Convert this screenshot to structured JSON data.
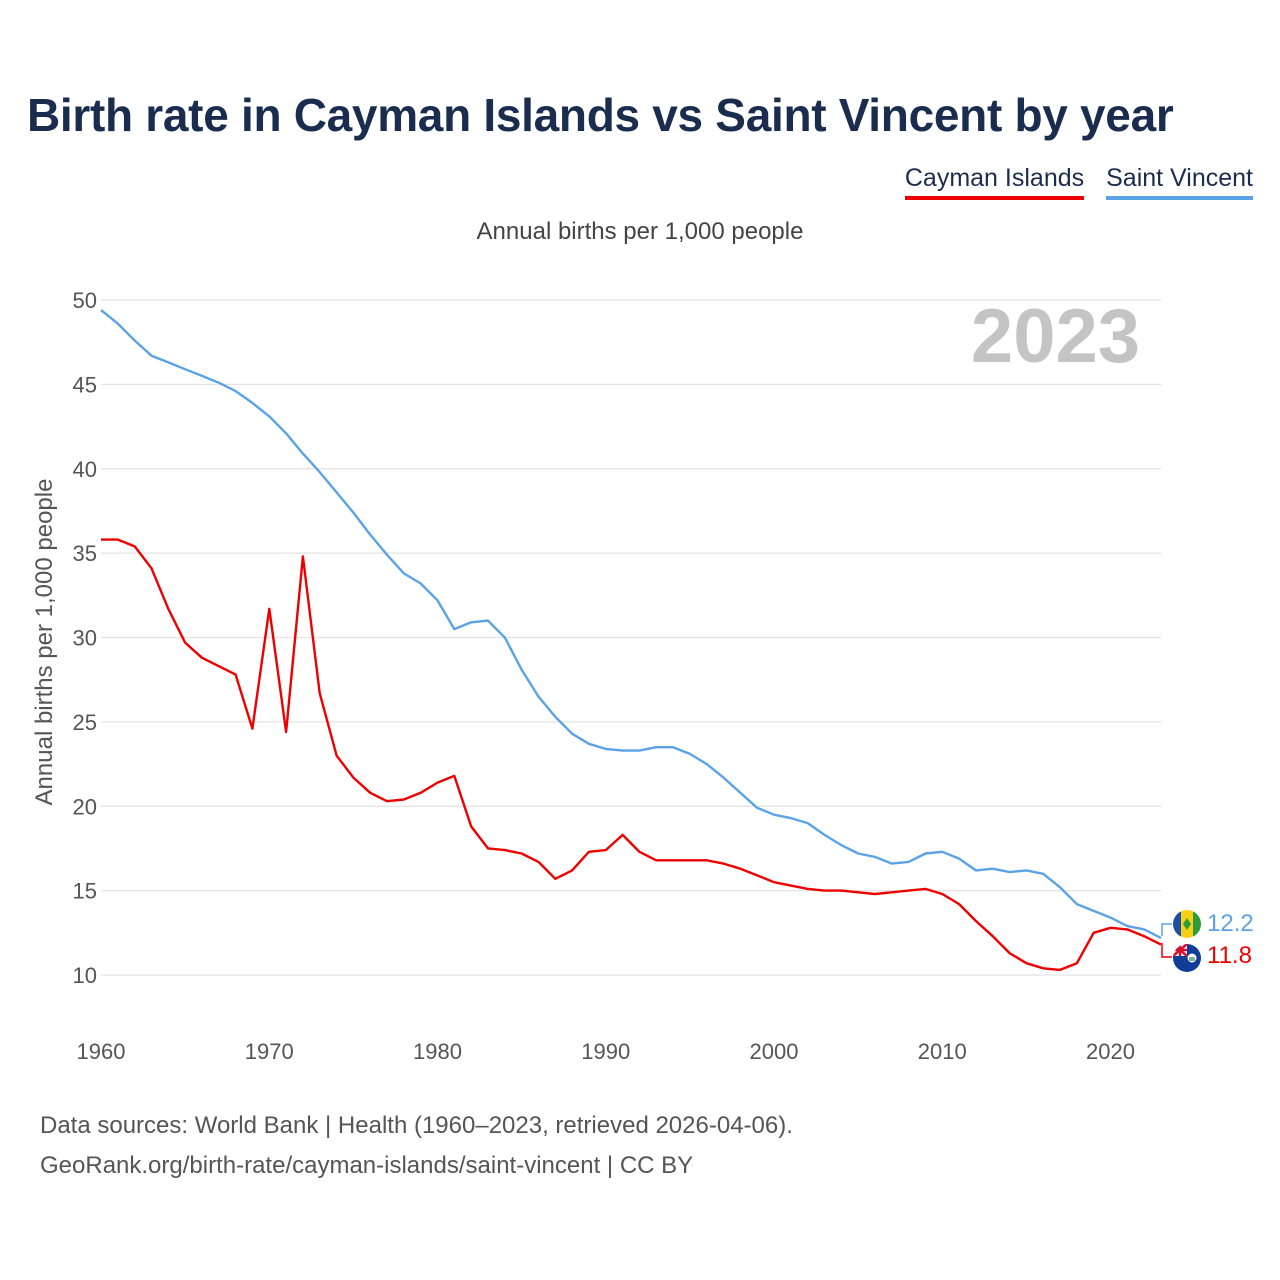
{
  "title": "Birth rate in Cayman Islands vs Saint Vincent by year",
  "legend": [
    {
      "label": "Cayman Islands",
      "color": "#ee0000"
    },
    {
      "label": "Saint Vincent",
      "color": "#5ba3e6"
    }
  ],
  "subtitle": "Annual births per 1,000 people",
  "year_watermark": "2023",
  "footer": {
    "line1": "Data sources: World Bank | Health (1960–2023, retrieved 2026-04-06).",
    "line2": "GeoRank.org/birth-rate/cayman-islands/saint-vincent | CC BY"
  },
  "end_labels": {
    "saint_vincent": "12.2",
    "cayman_islands": "11.8"
  },
  "chart_data": {
    "type": "line",
    "title": "Birth rate in Cayman Islands vs Saint Vincent by year",
    "xlabel": "",
    "ylabel": "Annual births per 1,000 people",
    "xlim": [
      1960,
      2023
    ],
    "ylim": [
      7.5,
      50
    ],
    "x_ticks": [
      1960,
      1970,
      1980,
      1990,
      2000,
      2010,
      2020
    ],
    "y_ticks": [
      10,
      15,
      20,
      25,
      30,
      35,
      40,
      45,
      50
    ],
    "grid": true,
    "x": [
      1960,
      1961,
      1962,
      1963,
      1964,
      1965,
      1966,
      1967,
      1968,
      1969,
      1970,
      1971,
      1972,
      1973,
      1974,
      1975,
      1976,
      1977,
      1978,
      1979,
      1980,
      1981,
      1982,
      1983,
      1984,
      1985,
      1986,
      1987,
      1988,
      1989,
      1990,
      1991,
      1992,
      1993,
      1994,
      1995,
      1996,
      1997,
      1998,
      1999,
      2000,
      2001,
      2002,
      2003,
      2004,
      2005,
      2006,
      2007,
      2008,
      2009,
      2010,
      2011,
      2012,
      2013,
      2014,
      2015,
      2016,
      2017,
      2018,
      2019,
      2020,
      2021,
      2022,
      2023
    ],
    "series": [
      {
        "name": "Cayman Islands",
        "color": "#ee0000",
        "values": [
          35.8,
          35.8,
          35.4,
          34.1,
          31.7,
          29.7,
          28.8,
          28.3,
          27.8,
          24.6,
          31.7,
          24.4,
          34.8,
          26.7,
          23.0,
          21.7,
          20.8,
          20.3,
          20.4,
          20.8,
          21.4,
          21.8,
          18.8,
          17.5,
          17.4,
          17.2,
          16.7,
          15.7,
          16.2,
          17.3,
          17.4,
          18.3,
          17.3,
          16.8,
          16.8,
          16.8,
          16.8,
          16.6,
          16.3,
          15.9,
          15.5,
          15.3,
          15.1,
          15.0,
          15.0,
          14.9,
          14.8,
          14.9,
          15.0,
          15.1,
          14.8,
          14.2,
          13.2,
          12.3,
          11.3,
          10.7,
          10.4,
          10.3,
          10.7,
          12.5,
          12.8,
          12.7,
          12.3,
          11.8
        ]
      },
      {
        "name": "Saint Vincent",
        "color": "#5ba3e6",
        "values": [
          49.4,
          48.6,
          47.6,
          46.7,
          46.3,
          45.9,
          45.5,
          45.1,
          44.6,
          43.9,
          43.1,
          42.1,
          40.9,
          39.8,
          38.6,
          37.4,
          36.1,
          34.9,
          33.8,
          33.2,
          32.2,
          30.5,
          30.9,
          31.0,
          30.0,
          28.1,
          26.5,
          25.3,
          24.3,
          23.7,
          23.4,
          23.3,
          23.3,
          23.5,
          23.5,
          23.1,
          22.5,
          21.7,
          20.8,
          19.9,
          19.5,
          19.3,
          19.0,
          18.3,
          17.7,
          17.2,
          17.0,
          16.6,
          16.7,
          17.2,
          17.3,
          16.9,
          16.2,
          16.3,
          16.1,
          16.2,
          16.0,
          15.2,
          14.2,
          13.8,
          13.4,
          12.9,
          12.7,
          12.2
        ]
      }
    ]
  }
}
